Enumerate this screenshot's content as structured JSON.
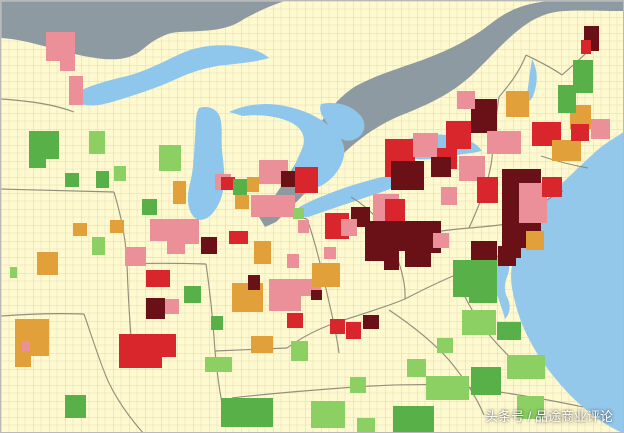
{
  "watermark": {
    "text": "头条号 / 品途商业评论"
  },
  "palette": {
    "land": "#fff9cf",
    "county_line": "#c9c3a5",
    "state_line": "#8d8a78",
    "water": "#8fc7ec",
    "ocean": "#93c8eb",
    "canada": "#8d9aa1",
    "dark_red": "#6a1017",
    "red": "#d9262d",
    "pink": "#eb8f98",
    "orange": "#e2a03b",
    "green_dark": "#58b148",
    "green_light": "#8ccf63"
  }
}
